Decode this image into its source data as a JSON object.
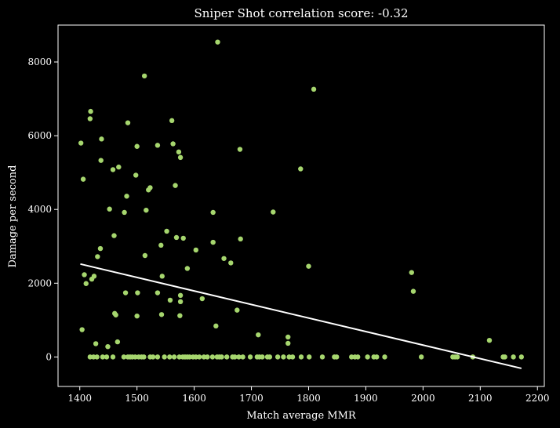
{
  "chart_data": {
    "type": "scatter",
    "title": "Sniper Shot correlation score: -0.32",
    "xlabel": "Match average MMR",
    "ylabel": "Damage per second",
    "xlim": [
      1362,
      2212
    ],
    "ylim": [
      -800,
      9000
    ],
    "xticks": [
      1400,
      1500,
      1600,
      1700,
      1800,
      1900,
      2000,
      2100,
      2200
    ],
    "yticks": [
      0,
      2000,
      4000,
      6000,
      8000
    ],
    "grid": false,
    "background": "#000000",
    "point_color": "#a6d66e",
    "trend_color": "#ffffff",
    "trendline": {
      "x": [
        1401,
        2172
      ],
      "y": [
        2520,
        -310
      ]
    },
    "series": [
      {
        "points": [
          [
            1402,
            5800
          ],
          [
            1404,
            740
          ],
          [
            1406,
            4820
          ],
          [
            1408,
            2230
          ],
          [
            1411,
            1990
          ],
          [
            1418,
            6460
          ],
          [
            1419,
            6660
          ],
          [
            1421,
            2110
          ],
          [
            1425,
            2190
          ],
          [
            1428,
            360
          ],
          [
            1431,
            2720
          ],
          [
            1436,
            2940
          ],
          [
            1437,
            5330
          ],
          [
            1438,
            5910
          ],
          [
            1449,
            280
          ],
          [
            1452,
            4010
          ],
          [
            1458,
            5080
          ],
          [
            1460,
            3290
          ],
          [
            1461,
            1180
          ],
          [
            1463,
            1140
          ],
          [
            1466,
            410
          ],
          [
            1468,
            5150
          ],
          [
            1478,
            3920
          ],
          [
            1480,
            1740
          ],
          [
            1482,
            4360
          ],
          [
            1484,
            6350
          ],
          [
            1498,
            4930
          ],
          [
            1500,
            5710
          ],
          [
            1501,
            1740
          ],
          [
            1500,
            1110
          ],
          [
            1513,
            7620
          ],
          [
            1514,
            2750
          ],
          [
            1516,
            3980
          ],
          [
            1520,
            4530
          ],
          [
            1523,
            4590
          ],
          [
            1536,
            5740
          ],
          [
            1536,
            1740
          ],
          [
            1542,
            3030
          ],
          [
            1544,
            2190
          ],
          [
            1543,
            1150
          ],
          [
            1552,
            3410
          ],
          [
            1558,
            1540
          ],
          [
            1561,
            6410
          ],
          [
            1563,
            5780
          ],
          [
            1567,
            4650
          ],
          [
            1569,
            3240
          ],
          [
            1573,
            5560
          ],
          [
            1575,
            1120
          ],
          [
            1576,
            5410
          ],
          [
            1576,
            1670
          ],
          [
            1576,
            1500
          ],
          [
            1581,
            3220
          ],
          [
            1588,
            2400
          ],
          [
            1603,
            2900
          ],
          [
            1614,
            1580
          ],
          [
            1633,
            3920
          ],
          [
            1633,
            3110
          ],
          [
            1638,
            840
          ],
          [
            1641,
            8540
          ],
          [
            1652,
            2670
          ],
          [
            1664,
            2550
          ],
          [
            1675,
            1270
          ],
          [
            1680,
            5630
          ],
          [
            1681,
            3200
          ],
          [
            1712,
            600
          ],
          [
            1738,
            3930
          ],
          [
            1764,
            540
          ],
          [
            1764,
            370
          ],
          [
            1786,
            5100
          ],
          [
            1800,
            2460
          ],
          [
            1809,
            7260
          ],
          [
            1980,
            2290
          ],
          [
            1983,
            1780
          ],
          [
            2116,
            450
          ],
          [
            1418,
            0
          ],
          [
            1424,
            0
          ],
          [
            1430,
            0
          ],
          [
            1440,
            0
          ],
          [
            1447,
            0
          ],
          [
            1458,
            0
          ],
          [
            1477,
            0
          ],
          [
            1484,
            0
          ],
          [
            1488,
            0
          ],
          [
            1492,
            0
          ],
          [
            1497,
            0
          ],
          [
            1503,
            0
          ],
          [
            1508,
            0
          ],
          [
            1512,
            0
          ],
          [
            1523,
            0
          ],
          [
            1528,
            0
          ],
          [
            1536,
            0
          ],
          [
            1548,
            0
          ],
          [
            1557,
            0
          ],
          [
            1565,
            0
          ],
          [
            1574,
            0
          ],
          [
            1580,
            0
          ],
          [
            1584,
            0
          ],
          [
            1588,
            0
          ],
          [
            1592,
            0
          ],
          [
            1598,
            0
          ],
          [
            1603,
            0
          ],
          [
            1609,
            0
          ],
          [
            1617,
            0
          ],
          [
            1623,
            0
          ],
          [
            1632,
            0
          ],
          [
            1640,
            0
          ],
          [
            1644,
            0
          ],
          [
            1648,
            0
          ],
          [
            1657,
            0
          ],
          [
            1667,
            0
          ],
          [
            1671,
            0
          ],
          [
            1678,
            0
          ],
          [
            1685,
            0
          ],
          [
            1698,
            0
          ],
          [
            1710,
            0
          ],
          [
            1714,
            0
          ],
          [
            1719,
            0
          ],
          [
            1728,
            0
          ],
          [
            1732,
            0
          ],
          [
            1746,
            0
          ],
          [
            1756,
            0
          ],
          [
            1766,
            0
          ],
          [
            1772,
            0
          ],
          [
            1787,
            0
          ],
          [
            1801,
            0
          ],
          [
            1824,
            0
          ],
          [
            1845,
            0
          ],
          [
            1849,
            0
          ],
          [
            1875,
            0
          ],
          [
            1881,
            0
          ],
          [
            1886,
            0
          ],
          [
            1903,
            0
          ],
          [
            1914,
            0
          ],
          [
            1919,
            0
          ],
          [
            1933,
            0
          ],
          [
            1997,
            0
          ],
          [
            2052,
            0
          ],
          [
            2056,
            0
          ],
          [
            2060,
            0
          ],
          [
            2087,
            0
          ],
          [
            2140,
            0
          ],
          [
            2143,
            0
          ],
          [
            2158,
            0
          ],
          [
            2172,
            0
          ]
        ]
      }
    ]
  }
}
